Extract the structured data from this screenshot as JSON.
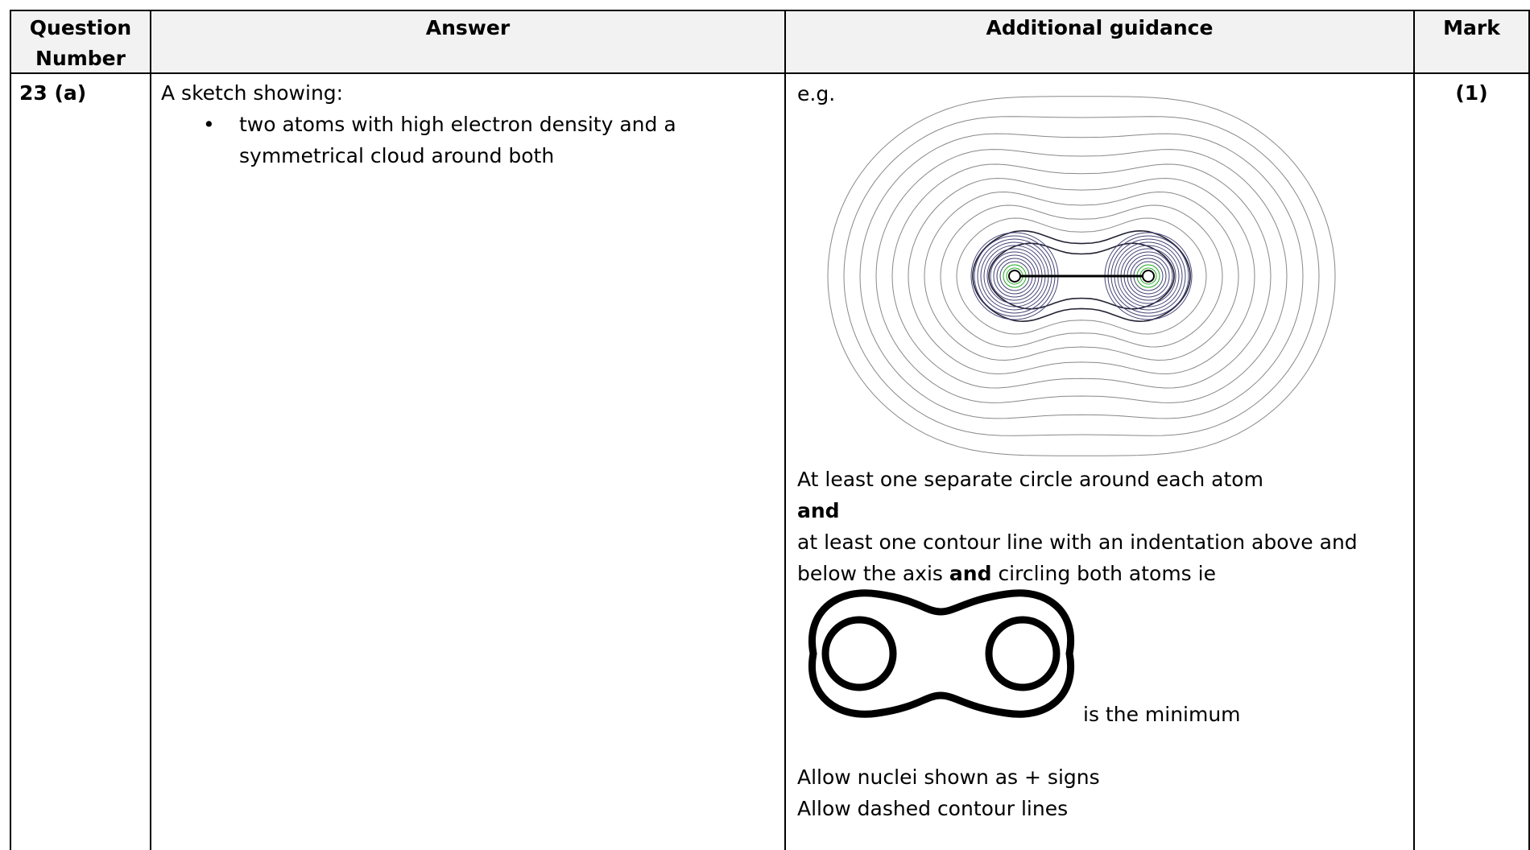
{
  "table": {
    "header": [
      "Question Number",
      "Answer",
      "Additional guidance",
      "Mark"
    ],
    "rows": [
      {
        "question": "23 (a)",
        "answer_intro": "A sketch showing:",
        "answer_bullets": [
          "two atoms with high electron density and a symmetrical cloud around both"
        ],
        "guidance": {
          "example": "e.g.",
          "line1": "At least one separate circle around each atom",
          "and1": "and",
          "line2": "at least one contour line with an indentation above and below the axis",
          "and2": "and",
          "line3": "circling both atoms ie",
          "minimum": "is the minimum",
          "allow1": "Allow nuclei shown as + signs",
          "allow2": "Allow dashed contour lines"
        },
        "mark": "(1)"
      }
    ]
  }
}
